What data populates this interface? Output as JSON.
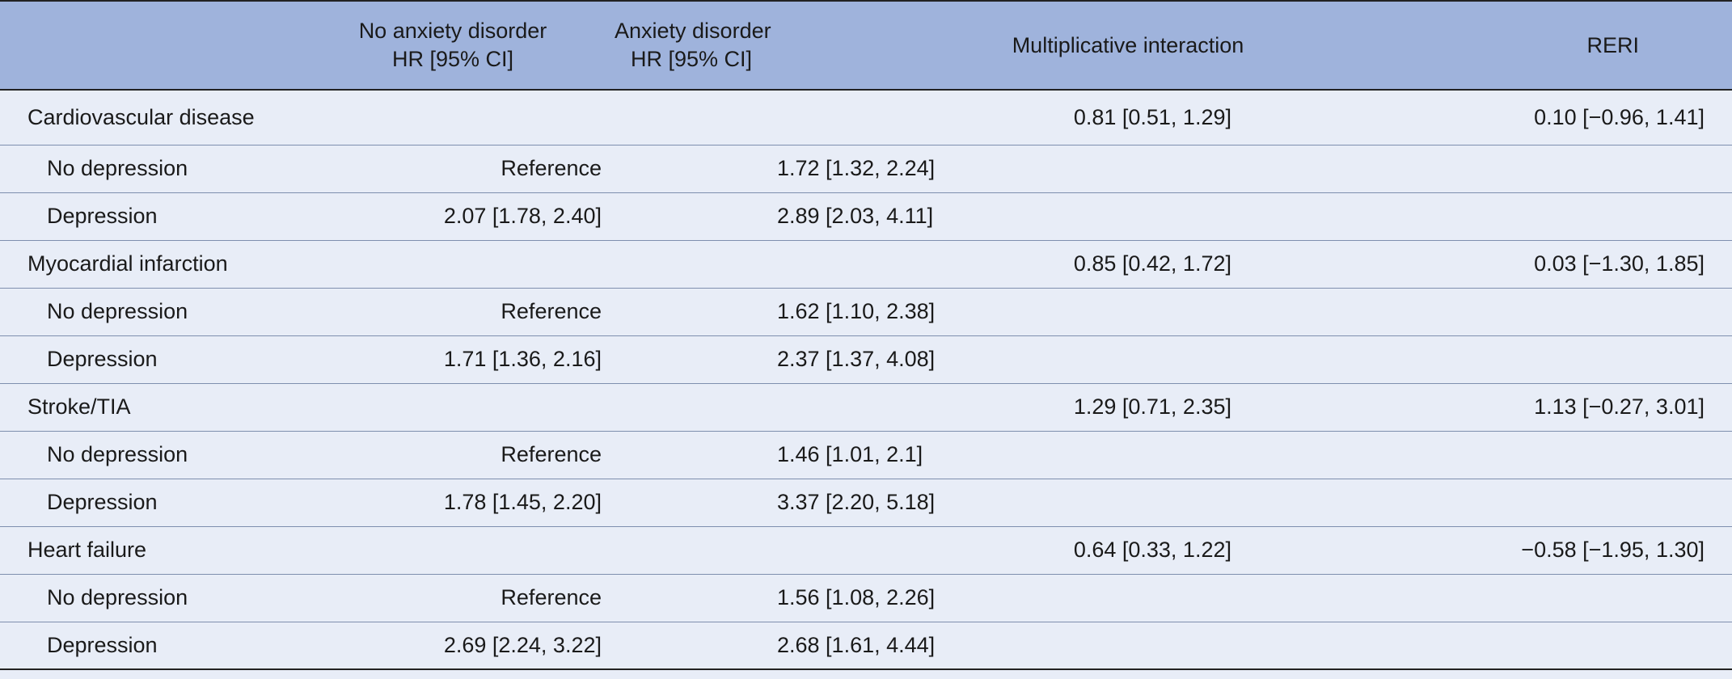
{
  "header": {
    "col1_line1": "No anxiety disorder",
    "col1_line2": "HR [95% CI]",
    "col2_line1": "Anxiety disorder",
    "col2_line2": "HR [95% CI]",
    "col3": "Multiplicative interaction",
    "col4": "RERI"
  },
  "rows": [
    {
      "type": "outcome",
      "label": "Cardiovascular disease",
      "no_anx": "",
      "anx": "",
      "mult": "0.81 [0.51, 1.29]",
      "reri": "0.10 [−0.96, 1.41]"
    },
    {
      "type": "sub",
      "label": "No depression",
      "no_anx": "Reference",
      "anx": "1.72 [1.32, 2.24]",
      "mult": "",
      "reri": ""
    },
    {
      "type": "sub",
      "label": "Depression",
      "no_anx": "2.07 [1.78, 2.40]",
      "anx": "2.89 [2.03, 4.11]",
      "mult": "",
      "reri": ""
    },
    {
      "type": "outcome",
      "label": "Myocardial infarction",
      "no_anx": "",
      "anx": "",
      "mult": "0.85 [0.42, 1.72]",
      "reri": "0.03 [−1.30, 1.85]"
    },
    {
      "type": "sub",
      "label": "No depression",
      "no_anx": "Reference",
      "anx": "1.62 [1.10, 2.38]",
      "mult": "",
      "reri": ""
    },
    {
      "type": "sub",
      "label": "Depression",
      "no_anx": "1.71 [1.36, 2.16]",
      "anx": "2.37 [1.37, 4.08]",
      "mult": "",
      "reri": ""
    },
    {
      "type": "outcome",
      "label": "Stroke/TIA",
      "no_anx": "",
      "anx": "",
      "mult": "1.29 [0.71, 2.35]",
      "reri": "1.13 [−0.27, 3.01]"
    },
    {
      "type": "sub",
      "label": "No depression",
      "no_anx": "Reference",
      "anx": "1.46 [1.01, 2.1]",
      "mult": "",
      "reri": ""
    },
    {
      "type": "sub",
      "label": "Depression",
      "no_anx": "1.78 [1.45, 2.20]",
      "anx": "3.37 [2.20, 5.18]",
      "mult": "",
      "reri": ""
    },
    {
      "type": "outcome",
      "label": "Heart failure",
      "no_anx": "",
      "anx": "",
      "mult": "0.64 [0.33, 1.22]",
      "reri": "−0.58 [−1.95, 1.30]"
    },
    {
      "type": "sub",
      "label": "No depression",
      "no_anx": "Reference",
      "anx": "1.56 [1.08, 2.26]",
      "mult": "",
      "reri": ""
    },
    {
      "type": "sub",
      "label": "Depression",
      "no_anx": "2.69 [2.24, 3.22]",
      "anx": "2.68 [1.61, 4.44]",
      "mult": "",
      "reri": ""
    }
  ]
}
